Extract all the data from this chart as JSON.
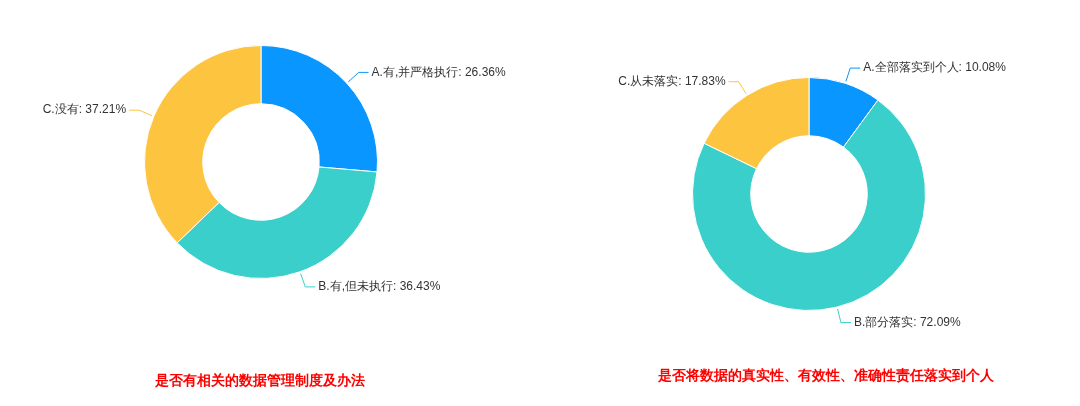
{
  "chart_data": [
    {
      "type": "donut",
      "title": "是否有相关的数据管理制度及办法",
      "categories": [
        "A.有,并严格执行",
        "B.有,但未执行",
        "C.没有"
      ],
      "values": [
        26.36,
        36.43,
        37.21
      ],
      "value_labels": [
        "26.36%",
        "36.43%",
        "37.21%"
      ],
      "colors": [
        "#0a96ff",
        "#3acfca",
        "#fdc43f"
      ],
      "legend": false
    },
    {
      "type": "donut",
      "title": "是否将数据的真实性、有效性、准确性责任落实到个人",
      "categories": [
        "A.全部落实到个人",
        "B.部分落实",
        "C.从未落实"
      ],
      "values": [
        10.08,
        72.09,
        17.83
      ],
      "value_labels": [
        "10.08%",
        "72.09%",
        "17.83%"
      ],
      "colors": [
        "#0a96ff",
        "#3acfca",
        "#fdc43f"
      ],
      "legend": false
    }
  ]
}
